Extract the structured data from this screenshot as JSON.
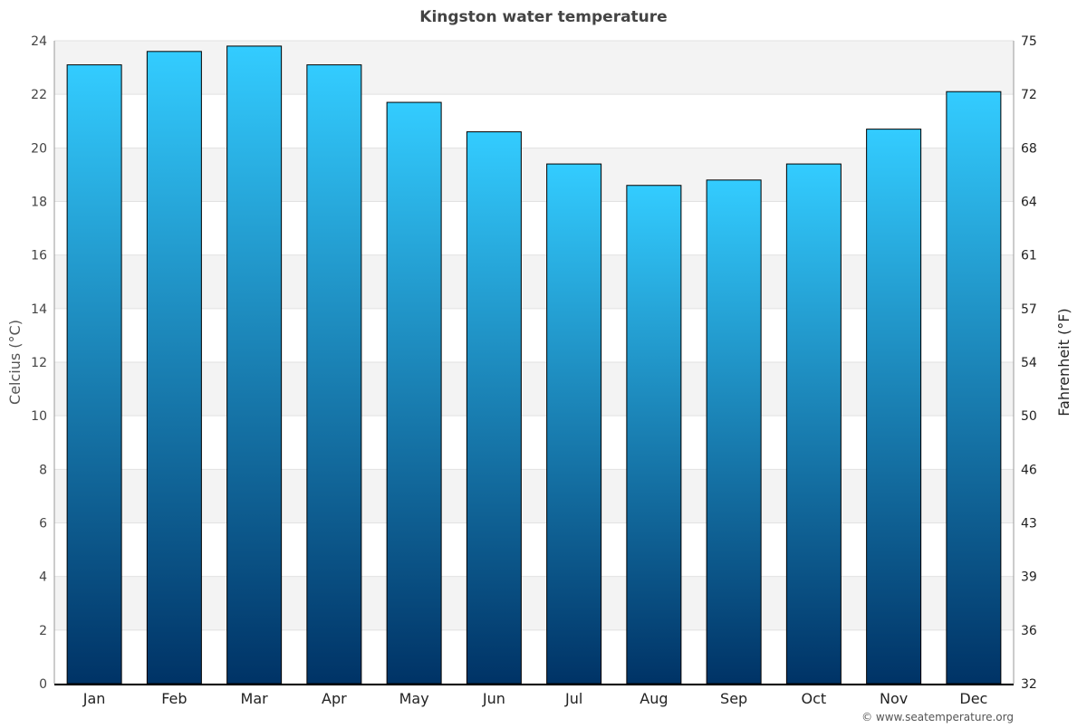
{
  "chart_data": {
    "type": "bar",
    "title": "Kingston water temperature",
    "ylabel": "Celcius (°C)",
    "y2label": "Fahrenheit (°F)",
    "categories": [
      "Jan",
      "Feb",
      "Mar",
      "Apr",
      "May",
      "Jun",
      "Jul",
      "Aug",
      "Sep",
      "Oct",
      "Nov",
      "Dec"
    ],
    "values": [
      23.1,
      23.6,
      23.8,
      23.1,
      21.7,
      20.6,
      19.4,
      18.6,
      18.8,
      19.4,
      20.7,
      22.1
    ],
    "ylim": [
      0,
      24
    ],
    "yticks": [
      "0",
      "2",
      "4",
      "6",
      "8",
      "10",
      "12",
      "14",
      "16",
      "18",
      "20",
      "22",
      "24"
    ],
    "y2ticks": [
      "32",
      "36",
      "39",
      "43",
      "46",
      "50",
      "54",
      "57",
      "61",
      "64",
      "68",
      "72",
      "75"
    ],
    "grid": true,
    "colors": {
      "bar_top": "#33ccff",
      "bar_bottom": "#003366",
      "band": "#f3f3f3"
    }
  },
  "credit": "© www.seatemperature.org"
}
